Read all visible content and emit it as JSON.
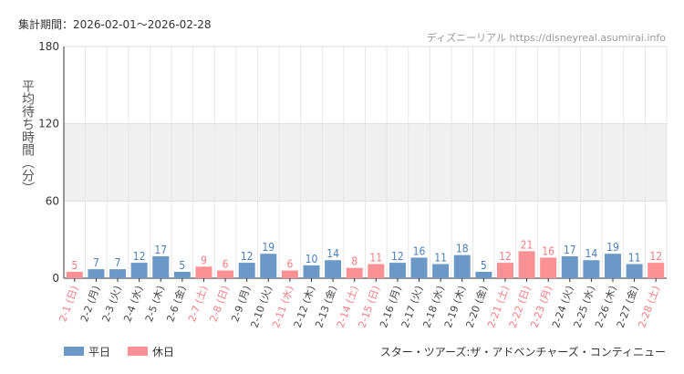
{
  "header": {
    "period": "集計期間：2026-02-01～2026-02-28",
    "credit": "ディズニーリアル https://disneyreal.asumirai.info"
  },
  "footer": {
    "attraction": "スター・ツアーズ:ザ・アドベンチャーズ・コンティニュー"
  },
  "chart_data": {
    "type": "bar",
    "ylabel": "平均待ち時間（分）",
    "ylim": [
      0,
      180
    ],
    "yticks": [
      0,
      60,
      120,
      180
    ],
    "grid": true,
    "legend_position": "bottom-left",
    "colors": {
      "平日": "#6b98c6",
      "休日": "#fb9195",
      "weekday_label": "#4a7fb8",
      "holiday_label": "#f57c82"
    },
    "categories": [
      "2-1 (日)",
      "2-2 (月)",
      "2-3 (火)",
      "2-4 (水)",
      "2-5 (木)",
      "2-6 (金)",
      "2-7 (土)",
      "2-8 (日)",
      "2-9 (月)",
      "2-10 (火)",
      "2-11 (水)",
      "2-12 (木)",
      "2-13 (金)",
      "2-14 (土)",
      "2-15 (日)",
      "2-16 (月)",
      "2-17 (火)",
      "2-18 (水)",
      "2-19 (木)",
      "2-20 (金)",
      "2-21 (土)",
      "2-22 (日)",
      "2-23 (月)",
      "2-24 (火)",
      "2-25 (水)",
      "2-26 (木)",
      "2-27 (金)",
      "2-28 (土)"
    ],
    "values": [
      5,
      7,
      7,
      12,
      17,
      5,
      9,
      6,
      12,
      19,
      6,
      10,
      14,
      8,
      11,
      12,
      16,
      11,
      18,
      5,
      12,
      21,
      16,
      17,
      14,
      19,
      11,
      12
    ],
    "day_type": [
      "休日",
      "平日",
      "平日",
      "平日",
      "平日",
      "平日",
      "休日",
      "休日",
      "平日",
      "平日",
      "休日",
      "平日",
      "平日",
      "休日",
      "休日",
      "平日",
      "平日",
      "平日",
      "平日",
      "平日",
      "休日",
      "休日",
      "休日",
      "平日",
      "平日",
      "平日",
      "平日",
      "休日"
    ],
    "legend": [
      "平日",
      "休日"
    ]
  }
}
